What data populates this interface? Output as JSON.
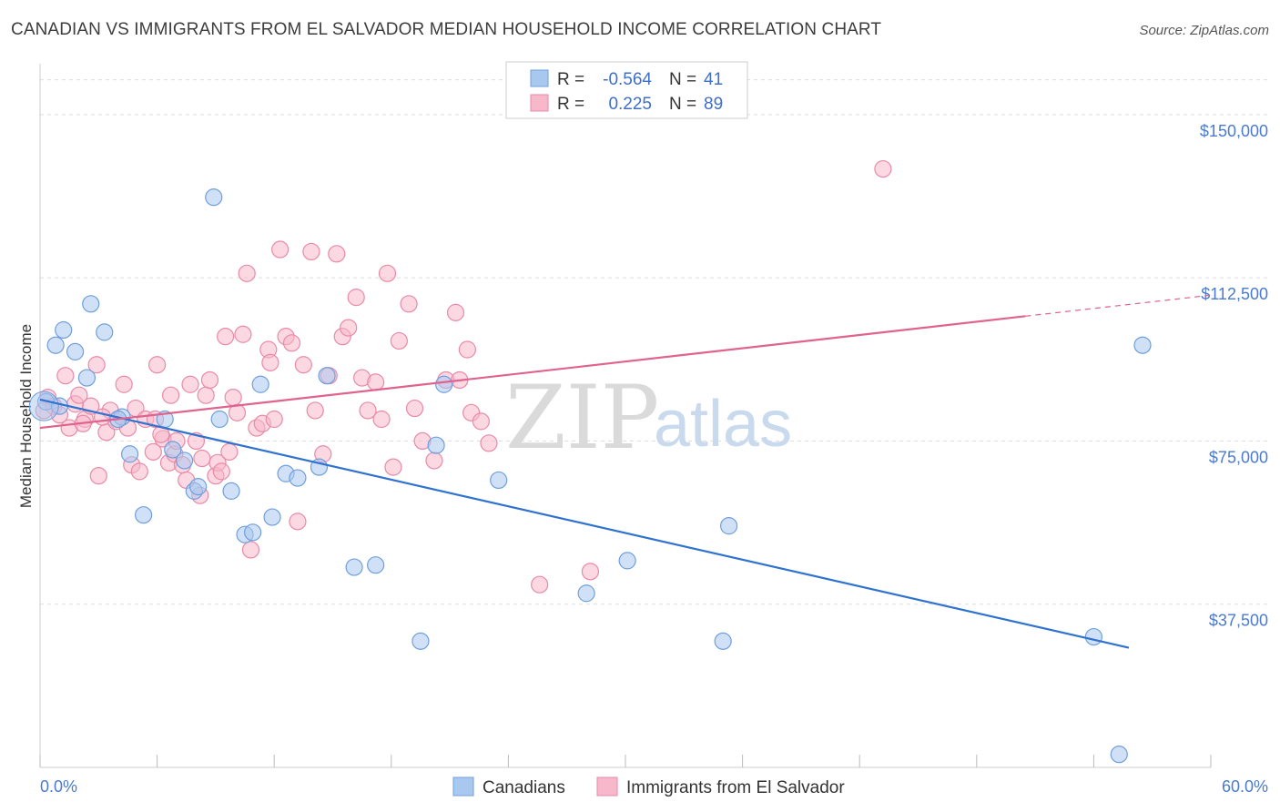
{
  "title": "CANADIAN VS IMMIGRANTS FROM EL SALVADOR MEDIAN HOUSEHOLD INCOME CORRELATION CHART",
  "source": "Source: ZipAtlas.com",
  "watermark": {
    "zip": "ZIP",
    "atlas": "atlas"
  },
  "colors": {
    "blue_fill": "#a9c8f0",
    "blue_stroke": "#6f9fdc",
    "blue_line": "#2f72d0",
    "pink_fill": "#f7b8cb",
    "pink_stroke": "#e98aa8",
    "pink_line": "#e0628e",
    "grid": "#dddddd",
    "tick_text": "#4a7bd0"
  },
  "legend": {
    "rows": [
      {
        "r_label": "R =",
        "r_value": "-0.564",
        "n_label": "N =",
        "n_value": "41"
      },
      {
        "r_label": "R =",
        "r_value": "0.225",
        "n_label": "N =",
        "n_value": "89"
      }
    ]
  },
  "chart_data": {
    "type": "scatter",
    "title": "CANADIAN VS IMMIGRANTS FROM EL SALVADOR MEDIAN HOUSEHOLD INCOME CORRELATION CHART",
    "xlabel": "",
    "ylabel": "Median Household Income",
    "xlim": [
      0,
      60
    ],
    "ylim": [
      0,
      160000
    ],
    "x_tick_labels": [
      "0.0%",
      "60.0%"
    ],
    "y_ticks": [
      37500,
      75000,
      112500,
      150000
    ],
    "y_tick_labels": [
      "$37,500",
      "$75,000",
      "$112,500",
      "$150,000"
    ],
    "grid": "horizontal dashed",
    "legend_position": "bottom",
    "series": [
      {
        "name": "Canadians",
        "color": "#a9c8f0",
        "trend": {
          "x": [
            0,
            55.8
          ],
          "y": [
            84500,
            27500
          ],
          "dashed_from": null
        },
        "points": [
          [
            0.3,
            84000
          ],
          [
            0.8,
            97000
          ],
          [
            1.2,
            100500
          ],
          [
            1.8,
            95500
          ],
          [
            2.4,
            89500
          ],
          [
            2.6,
            106500
          ],
          [
            3.3,
            100000
          ],
          [
            4.2,
            80500
          ],
          [
            4.6,
            72000
          ],
          [
            5.3,
            58000
          ],
          [
            6.4,
            80000
          ],
          [
            6.8,
            73000
          ],
          [
            7.4,
            70500
          ],
          [
            7.9,
            63500
          ],
          [
            8.1,
            64500
          ],
          [
            8.9,
            131000
          ],
          [
            9.2,
            80000
          ],
          [
            9.8,
            63500
          ],
          [
            10.5,
            53500
          ],
          [
            10.9,
            54000
          ],
          [
            11.3,
            88000
          ],
          [
            11.9,
            57500
          ],
          [
            12.6,
            67500
          ],
          [
            13.2,
            66500
          ],
          [
            14.3,
            69000
          ],
          [
            14.7,
            90000
          ],
          [
            16.1,
            46000
          ],
          [
            17.2,
            46500
          ],
          [
            19.5,
            29000
          ],
          [
            20.3,
            74000
          ],
          [
            20.7,
            88000
          ],
          [
            23.5,
            66000
          ],
          [
            28.0,
            40000
          ],
          [
            30.1,
            47500
          ],
          [
            35.0,
            29000
          ],
          [
            35.3,
            55500
          ],
          [
            54.0,
            30000
          ],
          [
            55.3,
            3000
          ],
          [
            56.5,
            97000
          ],
          [
            1.0,
            83000
          ],
          [
            4.0,
            80000
          ]
        ]
      },
      {
        "name": "Immigrants from El Salvador",
        "color": "#f7b8cb",
        "trend": {
          "x": [
            0,
            60
          ],
          "y": [
            78000,
            108500
          ],
          "dashed_from": 50.5
        },
        "points": [
          [
            0.4,
            85000
          ],
          [
            0.7,
            83000
          ],
          [
            1.0,
            81000
          ],
          [
            1.3,
            90000
          ],
          [
            1.5,
            78000
          ],
          [
            1.8,
            83500
          ],
          [
            2.0,
            85500
          ],
          [
            2.3,
            80000
          ],
          [
            2.6,
            83000
          ],
          [
            2.9,
            92500
          ],
          [
            3.0,
            67000
          ],
          [
            3.4,
            77000
          ],
          [
            3.6,
            82000
          ],
          [
            3.9,
            79500
          ],
          [
            4.3,
            88000
          ],
          [
            4.5,
            78000
          ],
          [
            4.7,
            69500
          ],
          [
            4.9,
            82500
          ],
          [
            5.1,
            68000
          ],
          [
            5.4,
            80000
          ],
          [
            5.8,
            72500
          ],
          [
            6.0,
            92500
          ],
          [
            6.3,
            75500
          ],
          [
            6.6,
            70000
          ],
          [
            6.7,
            85500
          ],
          [
            6.9,
            72000
          ],
          [
            7.0,
            75000
          ],
          [
            7.3,
            69500
          ],
          [
            7.5,
            66000
          ],
          [
            7.7,
            88000
          ],
          [
            8.0,
            75000
          ],
          [
            8.2,
            62500
          ],
          [
            8.3,
            71000
          ],
          [
            8.5,
            85500
          ],
          [
            8.7,
            89000
          ],
          [
            9.0,
            67000
          ],
          [
            9.1,
            70000
          ],
          [
            9.3,
            68000
          ],
          [
            9.5,
            99000
          ],
          [
            9.7,
            72500
          ],
          [
            9.9,
            85000
          ],
          [
            10.1,
            81500
          ],
          [
            10.4,
            99500
          ],
          [
            10.6,
            113500
          ],
          [
            10.8,
            50000
          ],
          [
            11.1,
            78000
          ],
          [
            11.4,
            79000
          ],
          [
            11.7,
            96000
          ],
          [
            11.8,
            93000
          ],
          [
            12.0,
            80000
          ],
          [
            12.3,
            119000
          ],
          [
            12.6,
            99000
          ],
          [
            12.9,
            97500
          ],
          [
            13.2,
            56500
          ],
          [
            13.5,
            92500
          ],
          [
            13.9,
            118500
          ],
          [
            14.1,
            82000
          ],
          [
            14.5,
            72000
          ],
          [
            14.8,
            90000
          ],
          [
            15.2,
            118000
          ],
          [
            15.5,
            99000
          ],
          [
            15.8,
            101000
          ],
          [
            16.2,
            108000
          ],
          [
            16.5,
            89500
          ],
          [
            16.8,
            82000
          ],
          [
            17.2,
            88500
          ],
          [
            17.5,
            80000
          ],
          [
            17.8,
            113500
          ],
          [
            18.1,
            69000
          ],
          [
            18.4,
            98000
          ],
          [
            18.9,
            106500
          ],
          [
            19.2,
            82500
          ],
          [
            19.6,
            75000
          ],
          [
            20.2,
            70500
          ],
          [
            20.8,
            89000
          ],
          [
            21.3,
            104500
          ],
          [
            21.5,
            89000
          ],
          [
            21.9,
            96000
          ],
          [
            22.1,
            81500
          ],
          [
            22.6,
            79500
          ],
          [
            23.0,
            74500
          ],
          [
            25.6,
            42000
          ],
          [
            28.2,
            45000
          ],
          [
            43.2,
            137500
          ],
          [
            0.2,
            82000
          ],
          [
            2.2,
            79000
          ],
          [
            5.9,
            80000
          ],
          [
            3.2,
            80500
          ],
          [
            6.2,
            76500
          ]
        ]
      }
    ]
  }
}
